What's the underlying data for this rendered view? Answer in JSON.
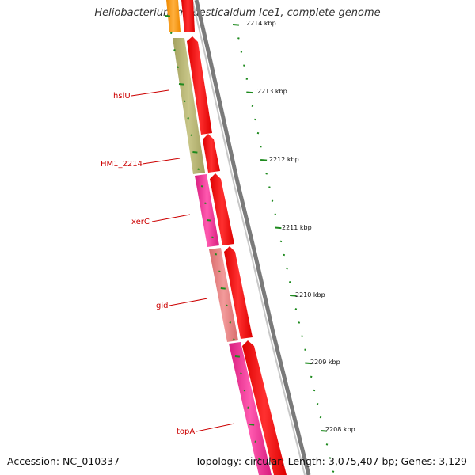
{
  "title": "Heliobacterium modesticaldum Ice1, complete genome",
  "footer": {
    "accession": "Accession: NC_010337",
    "topology": "Topology: circular; Length: 3,075,407 bp; Genes: 3,129"
  },
  "scale_ticks": [
    "2214 kbp",
    "2213 kbp",
    "2212 kbp",
    "2211 kbp",
    "2210 kbp",
    "2209 kbp",
    "2208 kbp"
  ],
  "gene_labels": [
    "hslU",
    "HM1_2214",
    "xerC",
    "gid",
    "topA"
  ],
  "colors": {
    "strand_red": "#ff0000",
    "dark_red": "#cc0000",
    "hslU": "#b5b370",
    "xerC": "#ff2e9a",
    "gid": "#e88080",
    "topA": "#ff1f8f",
    "top_segment": "#ff9e1a",
    "backbone": "#888888",
    "tick_green": "#1e8a1e"
  }
}
